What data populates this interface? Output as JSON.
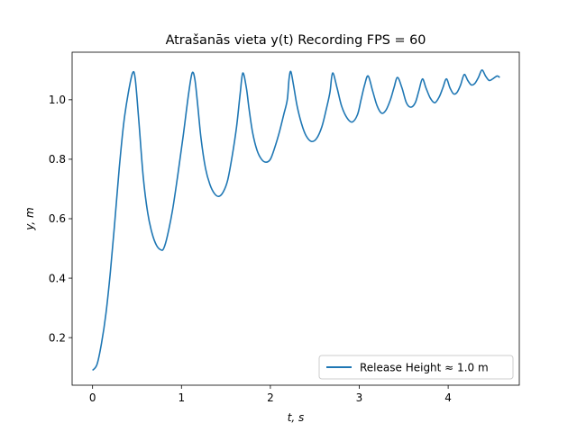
{
  "chart_data": {
    "type": "line",
    "title": "Atrašanās vieta y(t) Recording FPS = 60",
    "xlabel": "t, s",
    "ylabel": "y, m",
    "xlim": [
      -0.23,
      4.8
    ],
    "ylim": [
      0.04,
      1.16
    ],
    "xticks": [
      0,
      1,
      2,
      3,
      4
    ],
    "yticks": [
      0.2,
      0.4,
      0.6,
      0.8,
      1.0
    ],
    "xtick_labels": [
      "0",
      "1",
      "2",
      "3",
      "4"
    ],
    "ytick_labels": [
      "0.2",
      "0.4",
      "0.6",
      "0.8",
      "1.0"
    ],
    "grid": false,
    "legend_position": "lower-right",
    "series": [
      {
        "name": "Release Height ≈ 1.0 m",
        "color": "#1f77b4",
        "x": [
          0.0,
          0.05,
          0.1,
          0.15,
          0.2,
          0.25,
          0.3,
          0.35,
          0.4,
          0.45,
          0.48,
          0.52,
          0.57,
          0.62,
          0.67,
          0.72,
          0.77,
          0.8,
          0.84,
          0.9,
          0.96,
          1.02,
          1.08,
          1.12,
          1.15,
          1.18,
          1.22,
          1.27,
          1.32,
          1.37,
          1.42,
          1.47,
          1.52,
          1.57,
          1.62,
          1.66,
          1.69,
          1.73,
          1.76,
          1.8,
          1.85,
          1.9,
          1.95,
          2.0,
          2.05,
          2.1,
          2.15,
          2.19,
          2.21,
          2.23,
          2.26,
          2.3,
          2.35,
          2.4,
          2.46,
          2.52,
          2.58,
          2.63,
          2.67,
          2.7,
          2.75,
          2.8,
          2.86,
          2.92,
          2.98,
          3.02,
          3.06,
          3.1,
          3.15,
          3.2,
          3.25,
          3.3,
          3.35,
          3.39,
          3.43,
          3.48,
          3.53,
          3.58,
          3.63,
          3.67,
          3.71,
          3.75,
          3.8,
          3.85,
          3.9,
          3.94,
          3.98,
          4.02,
          4.06,
          4.1,
          4.14,
          4.18,
          4.22,
          4.26,
          4.3,
          4.34,
          4.38,
          4.42,
          4.46,
          4.5,
          4.55,
          4.58
        ],
        "y": [
          0.09,
          0.11,
          0.18,
          0.28,
          0.42,
          0.59,
          0.77,
          0.92,
          1.02,
          1.09,
          1.07,
          0.93,
          0.74,
          0.62,
          0.55,
          0.51,
          0.495,
          0.5,
          0.54,
          0.63,
          0.75,
          0.88,
          1.02,
          1.09,
          1.07,
          0.99,
          0.87,
          0.77,
          0.715,
          0.685,
          0.675,
          0.69,
          0.73,
          0.81,
          0.91,
          1.02,
          1.09,
          1.04,
          0.97,
          0.89,
          0.83,
          0.8,
          0.79,
          0.8,
          0.84,
          0.89,
          0.95,
          1.0,
          1.07,
          1.095,
          1.05,
          0.98,
          0.92,
          0.88,
          0.86,
          0.87,
          0.91,
          0.97,
          1.025,
          1.09,
          1.04,
          0.98,
          0.94,
          0.925,
          0.95,
          1.0,
          1.05,
          1.08,
          1.03,
          0.98,
          0.955,
          0.965,
          1.0,
          1.04,
          1.075,
          1.04,
          0.99,
          0.975,
          0.99,
          1.03,
          1.07,
          1.04,
          1.005,
          0.99,
          1.01,
          1.04,
          1.07,
          1.04,
          1.02,
          1.025,
          1.05,
          1.085,
          1.065,
          1.05,
          1.055,
          1.075,
          1.1,
          1.08,
          1.065,
          1.07,
          1.08,
          1.075
        ]
      }
    ]
  }
}
